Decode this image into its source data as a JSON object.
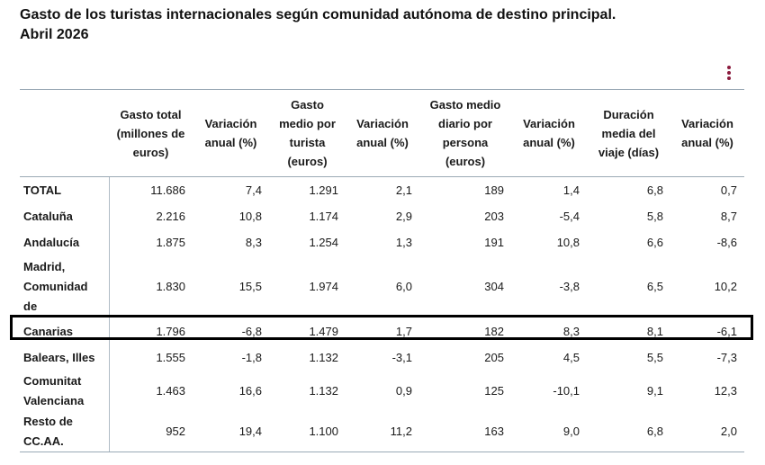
{
  "title": {
    "line1": "Gasto de los turistas internacionales según comunidad autónoma de destino principal.",
    "line2": "Abril 2026"
  },
  "columns": [
    "",
    "Gasto total (millones de euros)",
    "Variación anual (%)",
    "Gasto medio por turista (euros)",
    "Variación anual (%)",
    "Gasto medio diario por persona (euros)",
    "Variación anual (%)",
    "Duración media del viaje (días)",
    "Variación anual (%)"
  ],
  "rows": [
    {
      "name": "TOTAL",
      "values": [
        "11.686",
        "7,4",
        "1.291",
        "2,1",
        "189",
        "1,4",
        "6,8",
        "0,7"
      ]
    },
    {
      "name": "Cataluña",
      "values": [
        "2.216",
        "10,8",
        "1.174",
        "2,9",
        "203",
        "-5,4",
        "5,8",
        "8,7"
      ]
    },
    {
      "name": "Andalucía",
      "values": [
        "1.875",
        "8,3",
        "1.254",
        "1,3",
        "191",
        "10,8",
        "6,6",
        "-8,6"
      ]
    },
    {
      "name": "Madrid, Comunidad de",
      "values": [
        "1.830",
        "15,5",
        "1.974",
        "6,0",
        "304",
        "-3,8",
        "6,5",
        "10,2"
      ]
    },
    {
      "name": "Canarias",
      "values": [
        "1.796",
        "-6,8",
        "1.479",
        "1,7",
        "182",
        "8,3",
        "8,1",
        "-6,1"
      ]
    },
    {
      "name": "Balears, Illes",
      "values": [
        "1.555",
        "-1,8",
        "1.132",
        "-3,1",
        "205",
        "4,5",
        "5,5",
        "-7,3"
      ]
    },
    {
      "name": "Comunitat Valenciana",
      "values": [
        "1.463",
        "16,6",
        "1.132",
        "0,9",
        "125",
        "-10,1",
        "9,1",
        "12,3"
      ]
    },
    {
      "name": "Resto de CC.AA.",
      "values": [
        "952",
        "19,4",
        "1.100",
        "11,2",
        "163",
        "9,0",
        "6,8",
        "2,0"
      ]
    }
  ],
  "highlighted_row": "Canarias",
  "accent_color": "#8b1a3d",
  "icons": {
    "menu": "kebab-menu-icon"
  }
}
